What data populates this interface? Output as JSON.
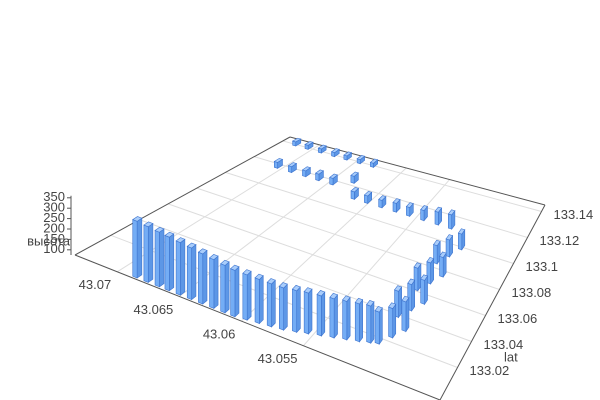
{
  "chart_data": {
    "type": "bar3d",
    "z_title": "высота",
    "y_title": "lat",
    "xlim": [
      43.0734,
      43.044
    ],
    "ylim": [
      132.995,
      133.145
    ],
    "zlim": [
      75,
      360
    ],
    "xticks": [
      43.055,
      43.06,
      43.065,
      43.07
    ],
    "yticks": [
      133.02,
      133.04,
      133.06,
      133.08,
      133.1,
      133.12,
      133.14
    ],
    "zticks": [
      100,
      150,
      200,
      250,
      300,
      350
    ],
    "grid": true,
    "color": "#74adf5",
    "x": [
      43.0687,
      43.0678,
      43.0669,
      43.0661,
      43.0652,
      43.0643,
      43.0634,
      43.0625,
      43.0616,
      43.0608,
      43.0599,
      43.059,
      43.0581,
      43.0572,
      43.0563,
      43.0555,
      43.0546,
      43.0537,
      43.0528,
      43.0519,
      43.0511,
      43.0505,
      43.0499,
      43.0493,
      43.0505,
      43.0499,
      43.0493,
      43.0505,
      43.0499,
      43.0493,
      43.0505,
      43.0499,
      43.0493,
      43.0514,
      43.0528,
      43.0543,
      43.0558,
      43.0572,
      43.0587,
      43.0602,
      43.0616,
      43.0646,
      43.0661,
      43.0675,
      43.069,
      43.0705,
      43.0631,
      43.0719,
      43.0705,
      43.069,
      43.0675,
      43.0661,
      43.0646,
      43.0631
    ],
    "y": [
      132.998,
      132.998,
      132.998,
      132.998,
      132.998,
      132.998,
      132.998,
      132.998,
      132.998,
      132.998,
      132.999,
      133.0,
      133.001,
      133.002,
      133.004,
      133.006,
      133.008,
      133.01,
      133.012,
      133.014,
      133.016,
      133.0175,
      133.025,
      133.0325,
      133.04,
      133.0475,
      133.055,
      133.0625,
      133.07,
      133.0775,
      133.085,
      133.0925,
      133.1,
      133.112,
      133.112,
      133.112,
      133.112,
      133.112,
      133.112,
      133.112,
      133.112,
      133.118,
      133.118,
      133.118,
      133.118,
      133.118,
      133.124,
      133.1405,
      133.1405,
      133.1405,
      133.1405,
      133.1405,
      133.1405,
      133.1405
    ],
    "z": [
      350,
      345,
      340,
      335,
      330,
      325,
      318,
      312,
      305,
      300,
      295,
      290,
      285,
      282,
      280,
      278,
      275,
      272,
      270,
      268,
      265,
      240,
      230,
      235,
      220,
      225,
      215,
      210,
      205,
      200,
      195,
      190,
      185,
      180,
      170,
      150,
      140,
      140,
      130,
      130,
      130,
      125,
      125,
      120,
      120,
      120,
      130,
      110,
      110,
      110,
      110,
      110,
      110,
      110
    ]
  }
}
